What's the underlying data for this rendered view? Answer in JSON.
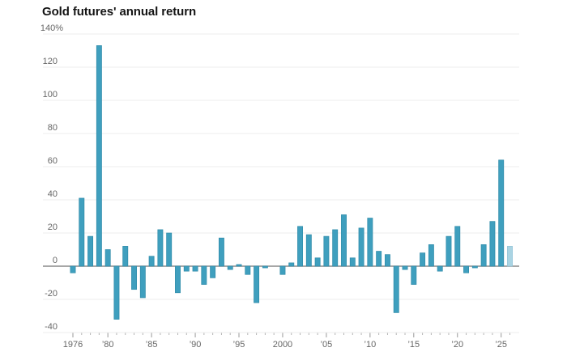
{
  "page": {
    "title": "Gold futures' annual return"
  },
  "chart_data": {
    "type": "bar",
    "title": "Gold futures' annual return",
    "unit": "%",
    "grid": "horizontal",
    "legend": "none",
    "ylim": [
      -40,
      140
    ],
    "light_bar_year": 2026,
    "colors": {
      "bar": "#3F9FBE",
      "bar_edge": "#2F8BA9",
      "bar_light": "#AAD4E3",
      "bar_light_edge": "#8FC2D6",
      "grid_line": "#ECECEC",
      "zero_line": "#8A8A8A",
      "axis_text": "#666666",
      "tick_minor": "#B3B3B3",
      "tick_major": "#999999",
      "title_text": "#141414",
      "background": "#FFFFFF"
    },
    "y_ticks": [
      {
        "value": 140,
        "label": "140%"
      },
      {
        "value": 120,
        "label": "120"
      },
      {
        "value": 100,
        "label": "100"
      },
      {
        "value": 80,
        "label": "80"
      },
      {
        "value": 60,
        "label": "60"
      },
      {
        "value": 40,
        "label": "40"
      },
      {
        "value": 20,
        "label": "20"
      },
      {
        "value": 0,
        "label": "0"
      },
      {
        "value": -20,
        "label": "-20"
      },
      {
        "value": -40,
        "label": "-40"
      }
    ],
    "x_tick_labels": [
      {
        "year": 1976,
        "label": "1976"
      },
      {
        "year": 1980,
        "label": "’80"
      },
      {
        "year": 1985,
        "label": "’85"
      },
      {
        "year": 1990,
        "label": "’90"
      },
      {
        "year": 1995,
        "label": "’95"
      },
      {
        "year": 2000,
        "label": "2000"
      },
      {
        "year": 2005,
        "label": "’05"
      },
      {
        "year": 2010,
        "label": "’10"
      },
      {
        "year": 2015,
        "label": "’15"
      },
      {
        "year": 2020,
        "label": "’20"
      },
      {
        "year": 2025,
        "label": "’25"
      }
    ],
    "years": [
      1976,
      1977,
      1978,
      1979,
      1980,
      1981,
      1982,
      1983,
      1984,
      1985,
      1986,
      1987,
      1988,
      1989,
      1990,
      1991,
      1992,
      1993,
      1994,
      1995,
      1996,
      1997,
      1998,
      1999,
      2000,
      2001,
      2002,
      2003,
      2004,
      2005,
      2006,
      2007,
      2008,
      2009,
      2010,
      2011,
      2012,
      2013,
      2014,
      2015,
      2016,
      2017,
      2018,
      2019,
      2020,
      2021,
      2022,
      2023,
      2024,
      2025,
      2026
    ],
    "values": [
      -4,
      41,
      18,
      133,
      10,
      -32,
      12,
      -14,
      -19,
      6,
      22,
      20,
      -16,
      -3,
      -3,
      -11,
      -7,
      17,
      -2,
      1,
      -5,
      -22,
      -1,
      0,
      -5,
      2,
      24,
      19,
      5,
      18,
      22,
      31,
      5,
      23,
      29,
      9,
      7,
      -28,
      -2,
      -11,
      8,
      13,
      -3,
      18,
      24,
      -4,
      -1,
      13,
      27,
      64,
      12
    ]
  }
}
